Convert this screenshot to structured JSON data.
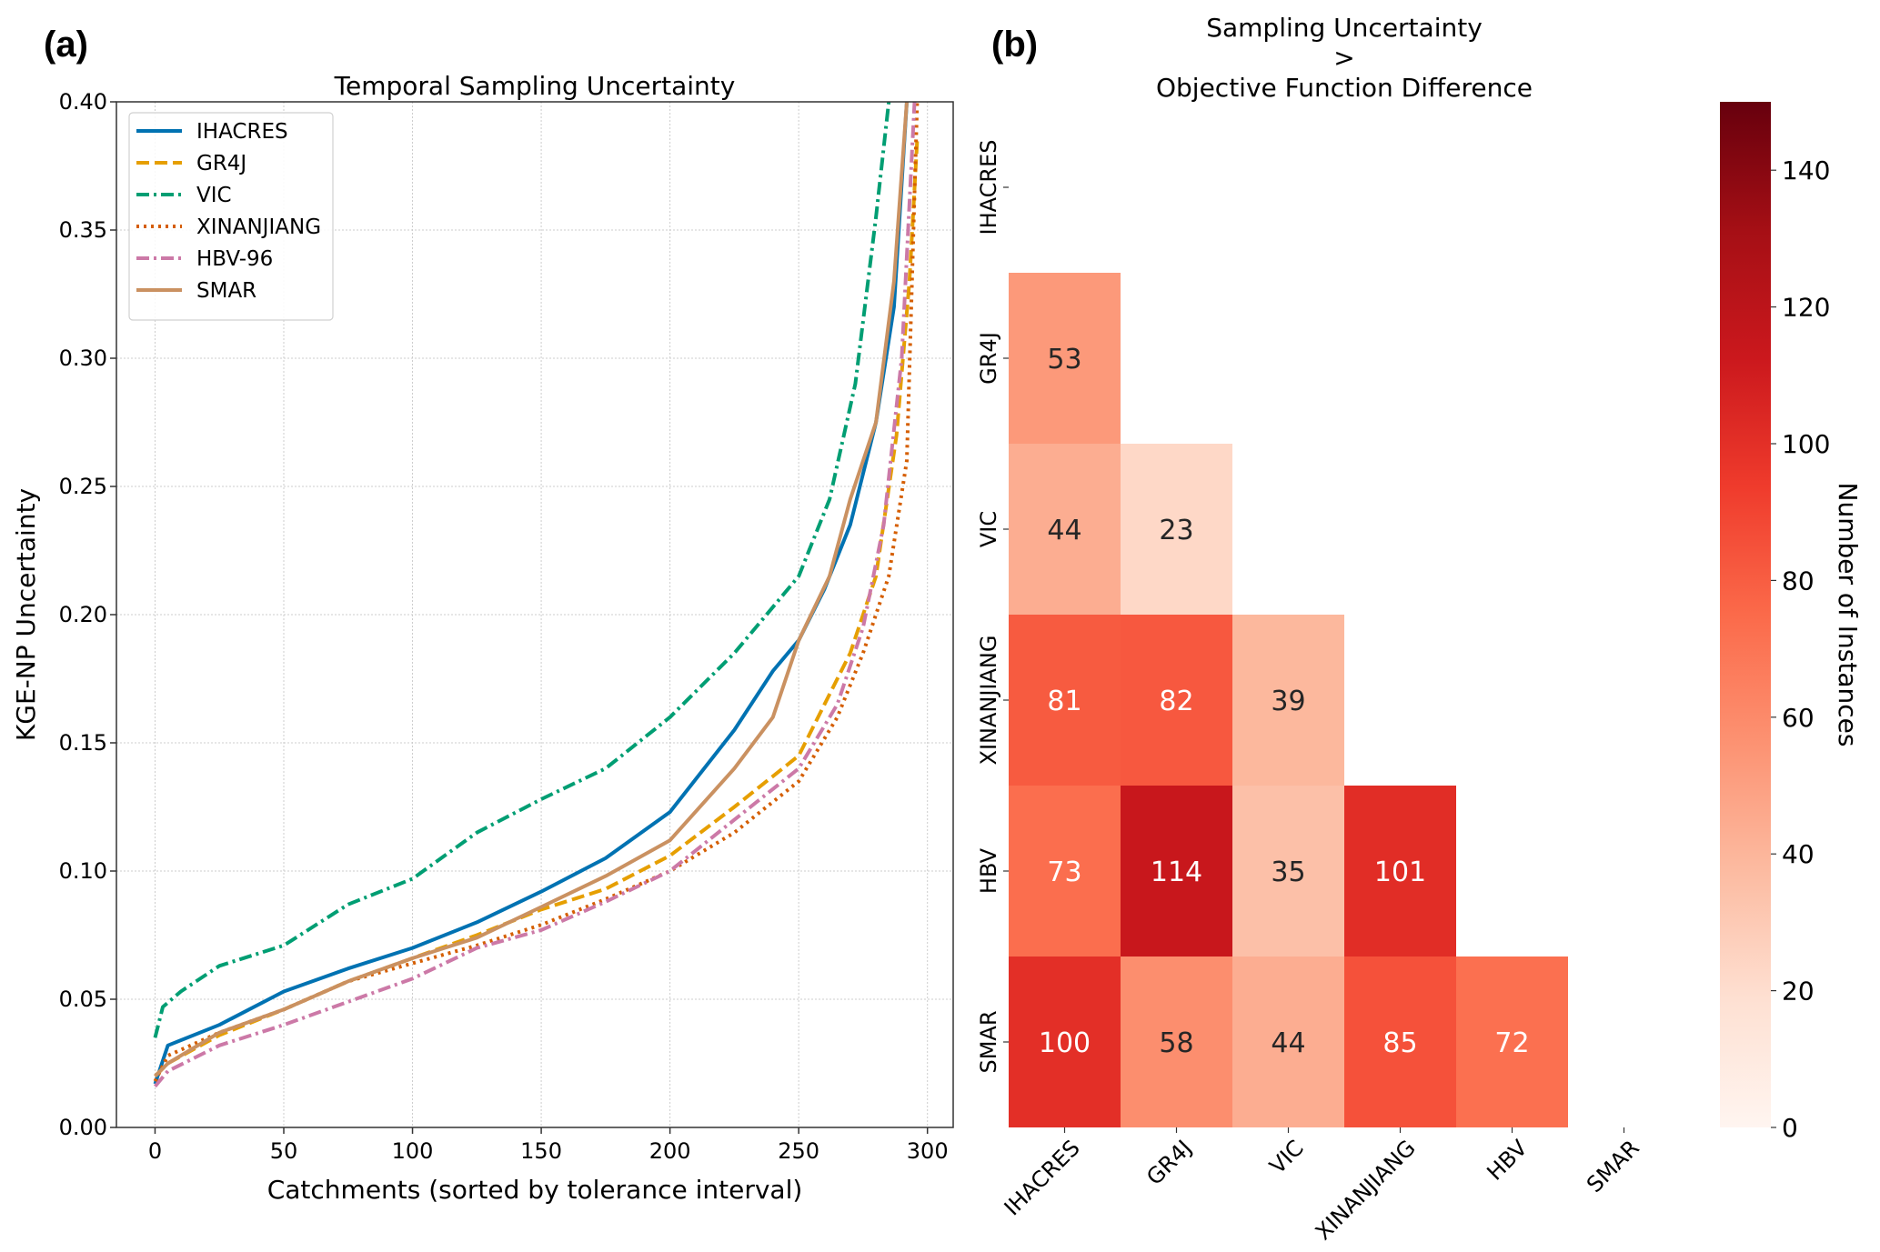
{
  "panel_a": {
    "label": "(a)"
  },
  "panel_b": {
    "label": "(b)"
  },
  "chart_data": [
    {
      "type": "line",
      "title": "Temporal Sampling Uncertainty",
      "xlabel": "Catchments (sorted by tolerance interval)",
      "ylabel": "KGE-NP Uncertainty",
      "xlim": [
        -15,
        310
      ],
      "ylim": [
        0.0,
        0.4
      ],
      "xticks": [
        0,
        50,
        100,
        150,
        200,
        250,
        300
      ],
      "xtick_labels": [
        "0",
        "50",
        "100",
        "150",
        "200",
        "250",
        "300"
      ],
      "yticks": [
        0.0,
        0.05,
        0.1,
        0.15,
        0.2,
        0.25,
        0.3,
        0.35,
        0.4
      ],
      "ytick_labels": [
        "0.00",
        "0.05",
        "0.10",
        "0.15",
        "0.20",
        "0.25",
        "0.30",
        "0.35",
        "0.40"
      ],
      "grid": true,
      "legend_position": "top-left",
      "series": [
        {
          "name": "IHACRES",
          "color": "#0072b2",
          "style": "solid",
          "x": [
            0,
            5,
            25,
            50,
            75,
            100,
            125,
            150,
            175,
            200,
            225,
            240,
            250,
            260,
            270,
            280,
            287,
            292
          ],
          "y": [
            0.017,
            0.032,
            0.04,
            0.053,
            0.062,
            0.07,
            0.08,
            0.092,
            0.105,
            0.123,
            0.155,
            0.178,
            0.19,
            0.21,
            0.235,
            0.275,
            0.32,
            0.4
          ]
        },
        {
          "name": "GR4J",
          "color": "#e69f00",
          "style": "dashed",
          "x": [
            0,
            5,
            25,
            50,
            75,
            100,
            125,
            150,
            175,
            200,
            225,
            250,
            260,
            270,
            280,
            288,
            293,
            296
          ],
          "y": [
            0.02,
            0.025,
            0.036,
            0.046,
            0.057,
            0.066,
            0.075,
            0.085,
            0.093,
            0.106,
            0.125,
            0.145,
            0.165,
            0.185,
            0.215,
            0.27,
            0.33,
            0.385
          ]
        },
        {
          "name": "VIC",
          "color": "#009e73",
          "style": "dashdot",
          "x": [
            0,
            3,
            10,
            25,
            50,
            75,
            100,
            125,
            150,
            175,
            200,
            225,
            250,
            262,
            272,
            280,
            285
          ],
          "y": [
            0.035,
            0.047,
            0.053,
            0.063,
            0.071,
            0.087,
            0.097,
            0.115,
            0.128,
            0.14,
            0.16,
            0.185,
            0.215,
            0.245,
            0.29,
            0.355,
            0.4
          ]
        },
        {
          "name": "XINANJIANG",
          "color": "#d55e00",
          "style": "dotted",
          "x": [
            0,
            5,
            25,
            50,
            75,
            100,
            125,
            150,
            175,
            200,
            225,
            250,
            265,
            275,
            285,
            292,
            296
          ],
          "y": [
            0.018,
            0.028,
            0.037,
            0.046,
            0.057,
            0.064,
            0.071,
            0.079,
            0.089,
            0.1,
            0.115,
            0.135,
            0.16,
            0.185,
            0.215,
            0.26,
            0.4
          ]
        },
        {
          "name": "HBV-96",
          "color": "#cc79a7",
          "style": "dashdot",
          "x": [
            0,
            5,
            25,
            50,
            75,
            100,
            125,
            150,
            175,
            200,
            225,
            250,
            265,
            275,
            283,
            290,
            295
          ],
          "y": [
            0.016,
            0.022,
            0.032,
            0.04,
            0.049,
            0.058,
            0.07,
            0.077,
            0.088,
            0.1,
            0.12,
            0.14,
            0.165,
            0.195,
            0.235,
            0.3,
            0.4
          ]
        },
        {
          "name": "SMAR",
          "color": "#ca9161",
          "style": "solid",
          "x": [
            0,
            5,
            25,
            50,
            75,
            100,
            125,
            150,
            175,
            200,
            225,
            240,
            250,
            262,
            270,
            280,
            287,
            292
          ],
          "y": [
            0.02,
            0.025,
            0.037,
            0.046,
            0.057,
            0.066,
            0.074,
            0.086,
            0.098,
            0.112,
            0.14,
            0.16,
            0.19,
            0.215,
            0.245,
            0.275,
            0.33,
            0.4
          ]
        }
      ]
    },
    {
      "type": "heatmap",
      "title": "Sampling Uncertainty\n>\nObjective Function Difference",
      "title_lines": [
        "Sampling Uncertainty",
        ">",
        "Objective Function Difference"
      ],
      "row_labels": [
        "IHACRES",
        "GR4J",
        "VIC",
        "XINANJIANG",
        "HBV",
        "SMAR"
      ],
      "col_labels": [
        "IHACRES",
        "GR4J",
        "VIC",
        "XINANJIANG",
        "HBV",
        "SMAR"
      ],
      "values": [
        [
          null,
          null,
          null,
          null,
          null,
          null
        ],
        [
          53,
          null,
          null,
          null,
          null,
          null
        ],
        [
          44,
          23,
          null,
          null,
          null,
          null
        ],
        [
          81,
          82,
          39,
          null,
          null,
          null
        ],
        [
          73,
          114,
          35,
          101,
          null,
          null
        ],
        [
          100,
          58,
          44,
          85,
          72,
          null
        ]
      ],
      "colormap": "Reds",
      "colorbar": {
        "label": "Number of Instances",
        "range": [
          0,
          150
        ],
        "ticks": [
          0,
          20,
          40,
          60,
          80,
          100,
          120,
          140
        ],
        "tick_labels": [
          "0",
          "20",
          "40",
          "60",
          "80",
          "100",
          "120",
          "140"
        ]
      }
    }
  ]
}
